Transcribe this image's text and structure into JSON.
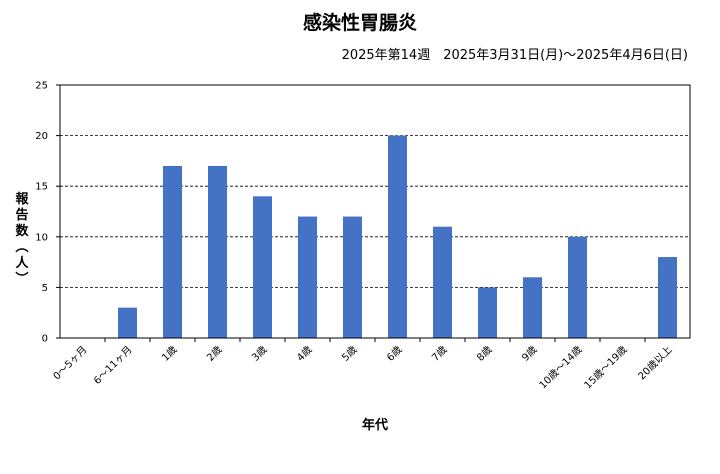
{
  "chart_data": {
    "type": "bar",
    "title": "感染性胃腸炎",
    "subtitle": "2025年第14週　2025年3月31日(月)～2025年4月6日(日)",
    "xlabel": "年代",
    "ylabel": "報告数（人）",
    "ylim": [
      0,
      25
    ],
    "yticks": [
      0,
      5,
      10,
      15,
      20,
      25
    ],
    "grid": true,
    "categories": [
      "0～5ヶ月",
      "6～11ヶ月",
      "1歳",
      "2歳",
      "3歳",
      "4歳",
      "5歳",
      "6歳",
      "7歳",
      "8歳",
      "9歳",
      "10歳～14歳",
      "15歳～19歳",
      "20歳以上"
    ],
    "values": [
      0,
      3,
      17,
      17,
      14,
      12,
      12,
      20,
      11,
      5,
      6,
      10,
      0,
      8
    ],
    "bar_color": "#4472c4"
  }
}
